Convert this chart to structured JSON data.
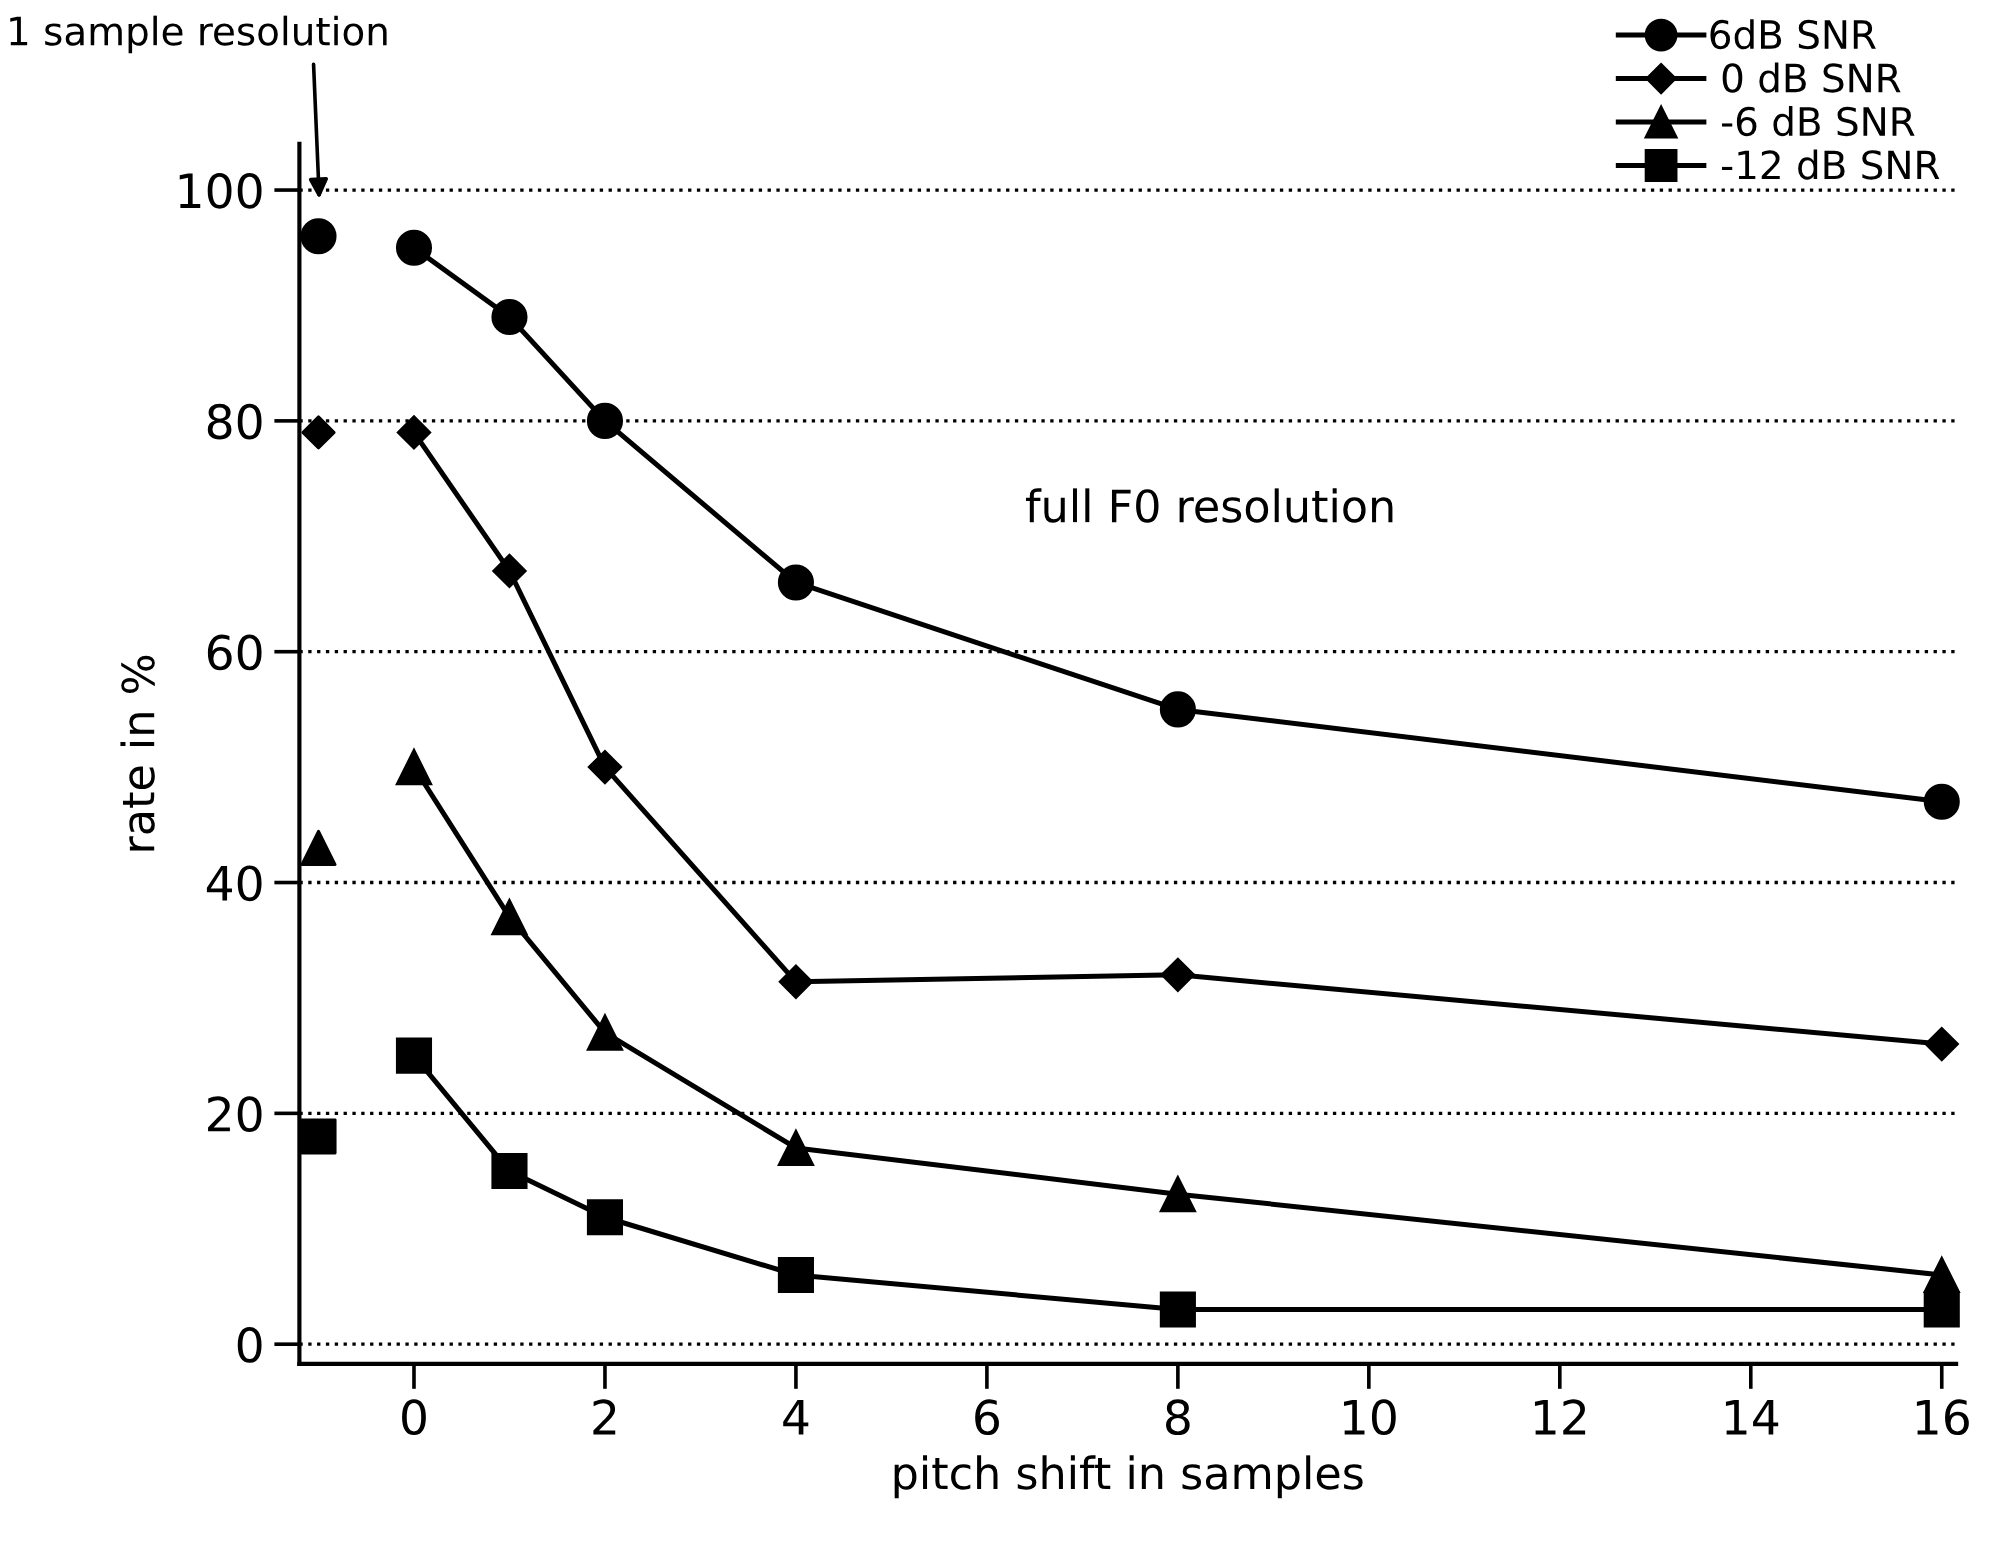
{
  "chart_data": {
    "type": "line",
    "xlabel": "pitch shift in samples",
    "ylabel": "rate in %",
    "xlim": [
      -1.2,
      16.15
    ],
    "xticks": [
      0,
      2,
      4,
      6,
      8,
      10,
      12,
      14,
      16
    ],
    "ylim": [
      -1.7,
      104
    ],
    "yticks": [
      0,
      20,
      40,
      60,
      80,
      100
    ],
    "grid": "y",
    "legend": "top right",
    "line_style": "solid",
    "series": [
      {
        "name": "6dB SNR",
        "color": "#000000",
        "marker": "circle",
        "x": [
          0,
          1,
          2,
          4,
          8,
          16
        ],
        "values": [
          95,
          89,
          80,
          66,
          55,
          47
        ]
      },
      {
        "name": " 0 dB SNR",
        "color": "#000000",
        "marker": "diamond",
        "x": [
          0,
          1,
          2,
          4,
          8,
          16
        ],
        "values": [
          79,
          67,
          50,
          31.4,
          32,
          26
        ]
      },
      {
        "name": " -6 dB SNR",
        "color": "#000000",
        "marker": "triangle",
        "x": [
          0,
          1,
          2,
          4,
          8,
          16
        ],
        "values": [
          50,
          37,
          27,
          17,
          13,
          6
        ]
      },
      {
        "name": " -12 dB SNR",
        "color": "#000000",
        "marker": "square",
        "x": [
          0,
          1,
          2,
          4,
          8,
          16
        ],
        "values": [
          25,
          15,
          11,
          6,
          3,
          3
        ]
      },
      {
        "type": "scatter",
        "color": "#000000",
        "marker": "circle",
        "x": [
          -1
        ],
        "values": [
          96
        ]
      },
      {
        "type": "scatter",
        "color": "#000000",
        "marker": "diamond",
        "x": [
          -1
        ],
        "values": [
          79
        ]
      },
      {
        "type": "scatter",
        "color": "#000000",
        "marker": "triangle",
        "x": [
          -1
        ],
        "values": [
          43
        ]
      },
      {
        "type": "scatter",
        "color": "#000000",
        "marker": "square",
        "x": [
          -1
        ],
        "values": [
          18
        ]
      }
    ],
    "annotations": [
      "1 sample resolution",
      "full F0 resolution"
    ]
  }
}
